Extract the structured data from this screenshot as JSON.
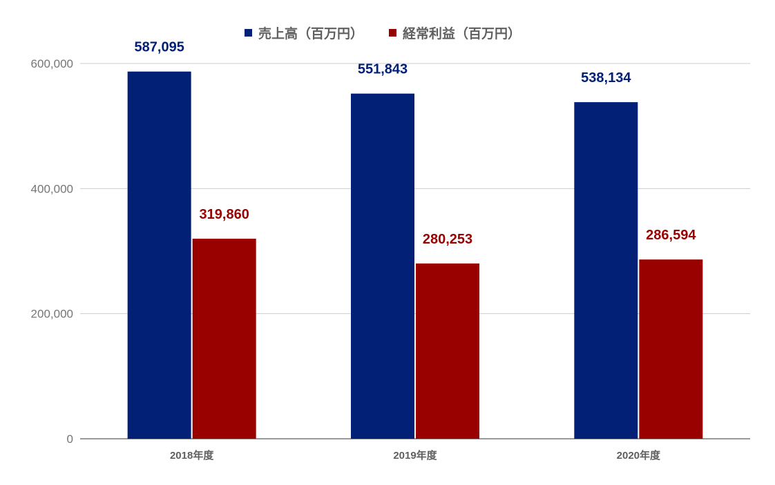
{
  "chart_data": {
    "type": "bar",
    "categories": [
      "2018年度",
      "2019年度",
      "2020年度"
    ],
    "series": [
      {
        "name": "売上高（百万円）",
        "values": [
          587095,
          551843,
          538134
        ],
        "color": "#022076",
        "labels": [
          "587,095",
          "551,843",
          "538,134"
        ]
      },
      {
        "name": "経常利益（百万円）",
        "values": [
          319860,
          280253,
          286594
        ],
        "color": "#990000",
        "labels": [
          "319,860",
          "280,253",
          "286,594"
        ]
      }
    ],
    "ylim": [
      0,
      600000
    ],
    "yticks": [
      0,
      200000,
      400000,
      600000
    ],
    "ytick_labels": [
      "0",
      "200,000",
      "400,000",
      "600,000"
    ],
    "grid": true,
    "legend_position": "top-center",
    "title": "",
    "xlabel": "",
    "ylabel": ""
  }
}
